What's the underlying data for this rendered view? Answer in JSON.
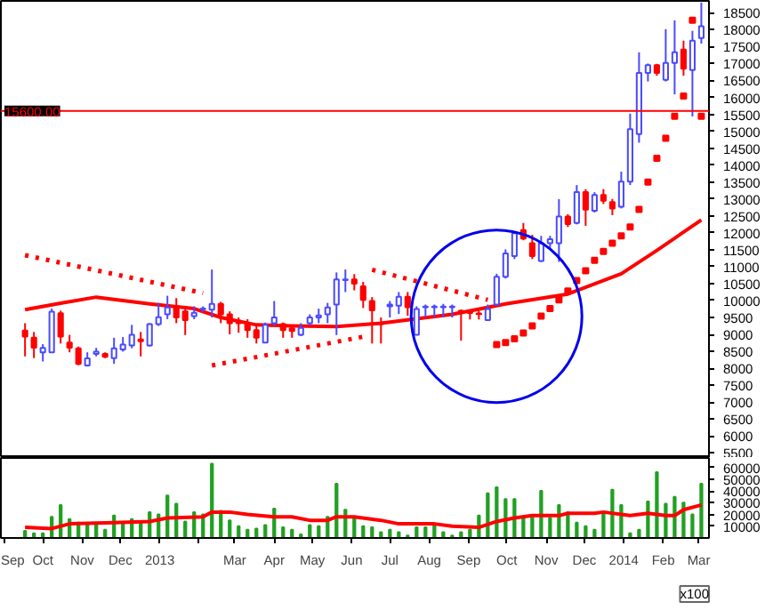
{
  "chart_data": [
    {
      "type": "candlestick",
      "x": [
        "2012-09-17",
        "2012-09-24",
        "2012-10-01",
        "2012-10-08",
        "2012-10-15",
        "2012-10-22",
        "2012-10-29",
        "2012-11-05",
        "2012-11-12",
        "2012-11-19",
        "2012-11-26",
        "2012-12-03",
        "2012-12-10",
        "2012-12-17",
        "2012-12-24",
        "2012-12-31",
        "2013-01-07",
        "2013-01-14",
        "2013-01-21",
        "2013-01-28",
        "2013-02-04",
        "2013-02-11",
        "2013-02-18",
        "2013-02-25",
        "2013-03-04",
        "2013-03-11",
        "2013-03-18",
        "2013-03-25",
        "2013-04-01",
        "2013-04-08",
        "2013-04-15",
        "2013-04-22",
        "2013-04-29",
        "2013-05-06",
        "2013-05-13",
        "2013-05-20",
        "2013-05-27",
        "2013-06-03",
        "2013-06-10",
        "2013-06-17",
        "2013-06-24",
        "2013-07-01",
        "2013-07-08",
        "2013-07-15",
        "2013-07-22",
        "2013-07-29",
        "2013-08-05",
        "2013-08-12",
        "2013-08-19",
        "2013-08-26",
        "2013-09-02",
        "2013-09-09",
        "2013-09-16",
        "2013-09-23",
        "2013-09-30",
        "2013-10-07",
        "2013-10-14",
        "2013-10-21",
        "2013-10-28",
        "2013-11-04",
        "2013-11-11",
        "2013-11-18",
        "2013-11-25",
        "2013-12-02",
        "2013-12-09",
        "2013-12-16",
        "2013-12-23",
        "2013-12-30",
        "2014-01-06",
        "2014-01-13",
        "2014-01-20",
        "2014-01-27",
        "2014-02-03",
        "2014-02-10",
        "2014-02-17",
        "2014-02-24",
        "2014-03-03"
      ],
      "ohlc": [
        [
          9110,
          9330,
          8350,
          8935
        ],
        [
          8900,
          9070,
          8300,
          8610
        ],
        [
          8470,
          8710,
          8200,
          8600
        ],
        [
          8470,
          9760,
          8470,
          9670
        ],
        [
          9625,
          9700,
          8730,
          8935
        ],
        [
          8760,
          8985,
          8470,
          8610
        ],
        [
          8590,
          8640,
          8090,
          8130
        ],
        [
          8080,
          8470,
          8050,
          8290
        ],
        [
          8420,
          8600,
          8350,
          8490
        ],
        [
          8420,
          8470,
          8300,
          8335
        ],
        [
          8300,
          8900,
          8130,
          8590
        ],
        [
          8555,
          8920,
          8490,
          8700
        ],
        [
          8675,
          9280,
          8590,
          8985
        ],
        [
          8850,
          9070,
          8350,
          8800
        ],
        [
          8675,
          9330,
          8640,
          9300
        ],
        [
          9300,
          9935,
          9250,
          9505
        ],
        [
          9590,
          10140,
          9450,
          9795
        ],
        [
          9810,
          10070,
          9330,
          9500
        ],
        [
          9675,
          9830,
          8980,
          9420
        ],
        [
          9540,
          9830,
          9450,
          9640
        ],
        [
          9740,
          9830,
          9660,
          9760
        ],
        [
          9730,
          10915,
          9500,
          9900
        ],
        [
          9900,
          9960,
          9330,
          9590
        ],
        [
          9590,
          9680,
          9000,
          9330
        ],
        [
          9400,
          9500,
          9050,
          9330
        ],
        [
          9330,
          9450,
          8900,
          9125
        ],
        [
          9125,
          9250,
          8730,
          8900
        ],
        [
          8760,
          9350,
          8760,
          9280
        ],
        [
          9330,
          9985,
          9250,
          9500
        ],
        [
          9300,
          9350,
          8900,
          9125
        ],
        [
          9180,
          9250,
          8900,
          9100
        ],
        [
          8985,
          9330,
          8950,
          9190
        ],
        [
          9330,
          9590,
          9250,
          9500
        ],
        [
          9500,
          9760,
          9330,
          9560
        ],
        [
          9590,
          9930,
          9330,
          9795
        ],
        [
          9880,
          10830,
          8980,
          10620
        ],
        [
          10600,
          10915,
          10250,
          10620
        ],
        [
          10620,
          10780,
          10300,
          10500
        ],
        [
          10420,
          10550,
          9780,
          10020
        ],
        [
          9985,
          10100,
          8730,
          9710
        ],
        [
          9330,
          9500,
          8730,
          9300
        ],
        [
          9830,
          9985,
          9500,
          9880
        ],
        [
          9850,
          10250,
          9600,
          10110
        ],
        [
          10110,
          10250,
          9550,
          9800
        ],
        [
          8990,
          9830,
          8980,
          9750
        ],
        [
          9800,
          9880,
          9500,
          9820
        ],
        [
          9800,
          9880,
          9500,
          9820
        ],
        [
          9800,
          9900,
          9500,
          9820
        ],
        [
          9800,
          9880,
          9500,
          9820
        ],
        [
          9700,
          9730,
          8815,
          9675
        ],
        [
          9650,
          9700,
          9440,
          9630
        ],
        [
          9620,
          9700,
          9440,
          9600
        ],
        [
          9420,
          9880,
          9400,
          9750
        ],
        [
          9880,
          10790,
          9850,
          10700
        ],
        [
          10700,
          11510,
          10650,
          11390
        ],
        [
          11310,
          12050,
          11225,
          11990
        ],
        [
          12080,
          12290,
          11780,
          11830
        ],
        [
          11690,
          11940,
          11225,
          11310
        ],
        [
          11170,
          11910,
          11140,
          11690
        ],
        [
          11690,
          11910,
          11560,
          11810
        ],
        [
          11690,
          12995,
          11140,
          12480
        ],
        [
          12480,
          12550,
          12170,
          12255
        ],
        [
          12290,
          13410,
          12250,
          13200
        ],
        [
          13200,
          13290,
          12205,
          12685
        ],
        [
          12650,
          13200,
          12600,
          13115
        ],
        [
          13115,
          13290,
          12850,
          12945
        ],
        [
          12910,
          13000,
          12520,
          12720
        ],
        [
          12770,
          13805,
          12720,
          13510
        ],
        [
          13510,
          15520,
          13410,
          15060
        ],
        [
          14920,
          17330,
          14660,
          16725
        ],
        [
          16725,
          17000,
          16470,
          16950
        ],
        [
          16950,
          16990,
          16640,
          16725
        ],
        [
          16520,
          18015,
          16470,
          17020
        ],
        [
          17020,
          18275,
          16090,
          17330
        ],
        [
          17415,
          17675,
          16640,
          16850
        ],
        [
          16810,
          17965,
          15435,
          17675
        ],
        [
          17755,
          18800,
          17590,
          18100
        ]
      ],
      "series": [
        {
          "type": "line",
          "color": "#ff0000",
          "x": [
            "2012-09-17",
            "2012-10-15",
            "2012-11-12",
            "2012-12-24",
            "2013-01-28",
            "2013-02-18",
            "2013-03-18",
            "2013-04-15",
            "2013-05-20",
            "2013-06-24",
            "2013-08-19",
            "2013-09-30",
            "2013-11-18",
            "2013-12-30",
            "2014-01-27",
            "2014-03-03"
          ],
          "values": [
            9730,
            9920,
            10100,
            9900,
            9760,
            9500,
            9280,
            9250,
            9230,
            9330,
            9590,
            9900,
            10190,
            10790,
            11480,
            12380
          ]
        },
        {
          "type": "line",
          "line_style": "dotted",
          "color": "#ff0000",
          "x": [
            "2012-09-17",
            "2013-02-04"
          ],
          "values": [
            11340,
            10220
          ]
        },
        {
          "type": "line",
          "line_style": "dotted",
          "color": "#ff0000",
          "x": [
            "2013-02-11",
            "2013-06-10"
          ],
          "values": [
            8080,
            8930
          ]
        },
        {
          "type": "line",
          "line_style": "dotted",
          "color": "#ff0000",
          "x": [
            "2013-06-17",
            "2013-09-16"
          ],
          "values": [
            10910,
            10020
          ]
        },
        {
          "type": "scatter",
          "marker": "square",
          "color": "#ff0000",
          "x": [
            "2013-09-23",
            "2013-09-30",
            "2013-10-07",
            "2013-10-14",
            "2013-10-21",
            "2013-10-28",
            "2013-11-04",
            "2013-11-11",
            "2013-11-18",
            "2013-11-25",
            "2013-12-02",
            "2013-12-09",
            "2013-12-16",
            "2013-12-23",
            "2013-12-30",
            "2014-01-06",
            "2014-01-13",
            "2014-01-20",
            "2014-01-27",
            "2014-02-03",
            "2014-02-10",
            "2014-02-17",
            "2014-02-24",
            "2014-03-03"
          ],
          "values": [
            8700,
            8760,
            8870,
            9040,
            9250,
            9540,
            9760,
            10020,
            10280,
            10590,
            10880,
            11190,
            11450,
            11690,
            11910,
            12170,
            12690,
            13500,
            14200,
            14790,
            15440,
            16040,
            18280,
            15440
          ]
        }
      ],
      "ref_lines": [
        {
          "axis": "y",
          "value": 15600,
          "label": "15600.00",
          "color": "#ff0000"
        }
      ],
      "xlim": [
        "2012-08-29",
        "2014-03-09"
      ],
      "ylim": [
        5350,
        18850
      ],
      "yticks": [
        5500,
        6000,
        6500,
        7000,
        7500,
        8000,
        8500,
        9000,
        9500,
        10000,
        10500,
        11000,
        11500,
        12000,
        12500,
        13000,
        13500,
        14000,
        14500,
        15000,
        15500,
        16000,
        16500,
        17000,
        17500,
        18000,
        18500
      ],
      "tick_labels": "y"
    },
    {
      "type": "bar",
      "x": [
        "2012-09-17",
        "2012-09-24",
        "2012-10-01",
        "2012-10-08",
        "2012-10-15",
        "2012-10-22",
        "2012-10-29",
        "2012-11-05",
        "2012-11-12",
        "2012-11-19",
        "2012-11-26",
        "2012-12-03",
        "2012-12-10",
        "2012-12-17",
        "2012-12-24",
        "2012-12-31",
        "2013-01-07",
        "2013-01-14",
        "2013-01-21",
        "2013-01-28",
        "2013-02-04",
        "2013-02-11",
        "2013-02-18",
        "2013-02-25",
        "2013-03-04",
        "2013-03-11",
        "2013-03-18",
        "2013-03-25",
        "2013-04-01",
        "2013-04-08",
        "2013-04-15",
        "2013-04-22",
        "2013-04-29",
        "2013-05-06",
        "2013-05-13",
        "2013-05-20",
        "2013-05-27",
        "2013-06-03",
        "2013-06-10",
        "2013-06-17",
        "2013-06-24",
        "2013-07-01",
        "2013-07-08",
        "2013-07-15",
        "2013-07-22",
        "2013-07-29",
        "2013-08-05",
        "2013-08-12",
        "2013-08-19",
        "2013-08-26",
        "2013-09-02",
        "2013-09-09",
        "2013-09-16",
        "2013-09-23",
        "2013-09-30",
        "2013-10-07",
        "2013-10-14",
        "2013-10-21",
        "2013-10-28",
        "2013-11-04",
        "2013-11-11",
        "2013-11-18",
        "2013-11-25",
        "2013-12-02",
        "2013-12-09",
        "2013-12-16",
        "2013-12-23",
        "2013-12-30",
        "2014-01-06",
        "2014-01-13",
        "2014-01-20",
        "2014-01-27",
        "2014-02-03",
        "2014-02-10",
        "2014-02-17",
        "2014-02-24",
        "2014-03-03"
      ],
      "series": [
        {
          "type": "bar",
          "color": "#22a022",
          "values": [
            6000,
            4000,
            4000,
            18000,
            28000,
            16000,
            13000,
            12000,
            12000,
            7000,
            19000,
            12000,
            16000,
            14000,
            22000,
            20000,
            36000,
            29000,
            14000,
            22000,
            20000,
            63000,
            23000,
            15000,
            10000,
            7000,
            8000,
            11000,
            25000,
            9000,
            7000,
            3000,
            11000,
            10000,
            18000,
            46000,
            24000,
            17000,
            10000,
            9000,
            5000,
            7000,
            5000,
            2000,
            9000,
            9000,
            11000,
            5000,
            2000,
            5000,
            7000,
            19000,
            38000,
            43000,
            33000,
            33000,
            18000,
            18000,
            40000,
            17000,
            28000,
            22000,
            13000,
            10000,
            7000,
            21000,
            41000,
            28000,
            4000,
            7000,
            31000,
            56000,
            29000,
            35000,
            30000,
            20000,
            46000
          ]
        },
        {
          "type": "line",
          "color": "#ff0000",
          "x": [
            "2012-09-17",
            "2012-10-08",
            "2012-10-22",
            "2012-11-26",
            "2012-12-24",
            "2013-01-07",
            "2013-02-04",
            "2013-02-11",
            "2013-02-25",
            "2013-03-11",
            "2013-04-01",
            "2013-04-15",
            "2013-04-29",
            "2013-05-13",
            "2013-05-20",
            "2013-06-03",
            "2013-06-24",
            "2013-07-08",
            "2013-08-05",
            "2013-08-19",
            "2013-09-09",
            "2013-09-23",
            "2013-10-07",
            "2013-10-21",
            "2013-11-11",
            "2013-11-18",
            "2013-12-09",
            "2013-12-16",
            "2014-01-06",
            "2014-01-20",
            "2014-02-03",
            "2014-02-10",
            "2014-02-17",
            "2014-03-03"
          ],
          "values": [
            9000,
            8000,
            12000,
            13000,
            14000,
            17000,
            18000,
            22000,
            22000,
            20000,
            18000,
            18000,
            15000,
            15000,
            18000,
            18000,
            15000,
            12000,
            12000,
            10000,
            9000,
            14000,
            17000,
            19000,
            19000,
            21000,
            21000,
            22000,
            19000,
            21000,
            19000,
            19000,
            24000,
            28000
          ]
        }
      ],
      "annotations": [
        "x100"
      ],
      "xlim": [
        "2012-08-29",
        "2014-03-09"
      ],
      "ylim": [
        0,
        68000
      ],
      "yticks": [
        10000,
        20000,
        30000,
        40000,
        50000,
        60000
      ],
      "xticks": [
        {
          "value": "2012-09-01",
          "label": "Sep"
        },
        {
          "value": "2012-10-01",
          "label": "Oct"
        },
        {
          "value": "2012-11-01",
          "label": "Nov"
        },
        {
          "value": "2012-12-01",
          "label": "Dec"
        },
        {
          "value": "2013-01-01",
          "label": "2013"
        },
        {
          "value": "2013-02-01",
          "label": null
        },
        {
          "value": "2013-03-01",
          "label": "Mar"
        },
        {
          "value": "2013-04-01",
          "label": "Apr"
        },
        {
          "value": "2013-05-01",
          "label": "May"
        },
        {
          "value": "2013-06-01",
          "label": "Jun"
        },
        {
          "value": "2013-07-01",
          "label": "Jul"
        },
        {
          "value": "2013-08-01",
          "label": "Aug"
        },
        {
          "value": "2013-09-01",
          "label": "Sep"
        },
        {
          "value": "2013-10-01",
          "label": "Oct"
        },
        {
          "value": "2013-11-01",
          "label": "Nov"
        },
        {
          "value": "2013-12-01",
          "label": "Dec"
        },
        {
          "value": "2014-01-01",
          "label": "2014"
        },
        {
          "value": "2014-02-01",
          "label": "Feb"
        },
        {
          "value": "2014-03-01",
          "label": "Mar"
        }
      ]
    }
  ]
}
